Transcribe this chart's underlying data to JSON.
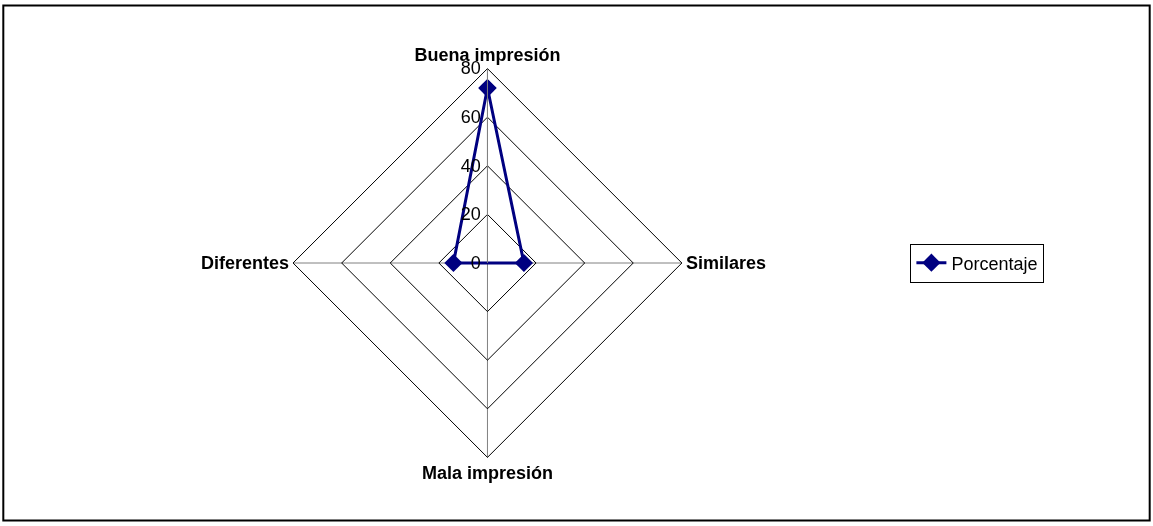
{
  "chart_data": {
    "type": "radar",
    "categories": [
      "Buena impresión",
      "Similares",
      "Mala impresión",
      "Diferentes"
    ],
    "series": [
      {
        "name": "Porcentaje",
        "color": "#000080",
        "values": [
          72,
          15,
          0,
          14
        ]
      }
    ],
    "ylim": [
      0,
      80
    ],
    "yticks": [
      0,
      20,
      40,
      60,
      80
    ],
    "marker": "diamond",
    "legend": "right",
    "grid": true
  }
}
